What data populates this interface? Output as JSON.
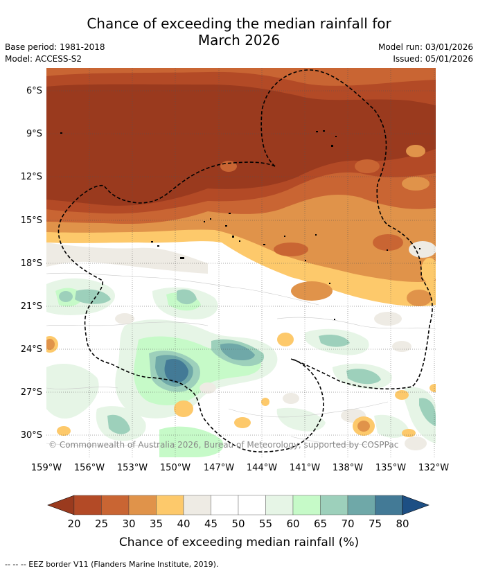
{
  "header": {
    "title_line1": "Chance of exceeding the median rainfall for",
    "title_line2": "March 2026",
    "base_period": "Base period: 1981-2018",
    "model": "Model: ACCESS-S2",
    "model_run": "Model run: 03/01/2026",
    "issued": "Issued: 05/01/2026"
  },
  "map": {
    "lat_labels": [
      "6°S",
      "9°S",
      "12°S",
      "15°S",
      "18°S",
      "21°S",
      "24°S",
      "27°S",
      "30°S"
    ],
    "lon_labels": [
      "159°W",
      "156°W",
      "153°W",
      "150°W",
      "147°W",
      "144°W",
      "141°W",
      "138°W",
      "135°W",
      "132°W"
    ],
    "copyright": "© Commonwealth of Australia 2026, Bureau of Meteorology, supported by COSPPac"
  },
  "colorbar": {
    "ticks": [
      "20",
      "25",
      "30",
      "35",
      "40",
      "45",
      "50",
      "55",
      "60",
      "65",
      "70",
      "75",
      "80"
    ],
    "colors": [
      "#9a3a1e",
      "#b34a26",
      "#c96533",
      "#e0934a",
      "#fdc96b",
      "#eeebe4",
      "#ffffff",
      "#ffffff",
      "#e6f5e6",
      "#c6fac8",
      "#9dd0bb",
      "#6fa8a8",
      "#437a96",
      "#1d4f84"
    ],
    "label": "Chance of exceeding median rainfall (%)"
  },
  "footnote": "--  --  -- EEZ border V11 (Flanders Marine Institute, 2019)."
}
